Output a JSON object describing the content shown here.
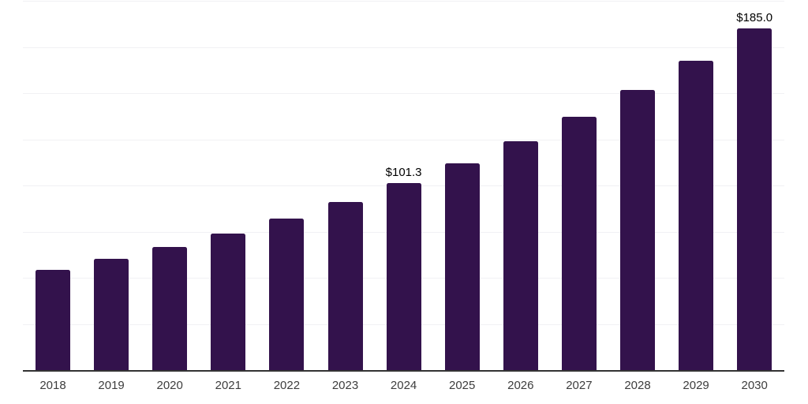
{
  "chart_data": {
    "type": "bar",
    "categories": [
      "2018",
      "2019",
      "2020",
      "2021",
      "2022",
      "2023",
      "2024",
      "2025",
      "2026",
      "2027",
      "2028",
      "2029",
      "2030"
    ],
    "values": [
      54.5,
      60.3,
      66.7,
      73.8,
      82.1,
      91.0,
      101.3,
      112.0,
      123.9,
      137.4,
      151.6,
      167.5,
      185.0
    ],
    "value_labels": [
      {
        "category": "2024",
        "label": "$101.3"
      },
      {
        "category": "2030",
        "label": "$185.0"
      }
    ],
    "xlabel": "",
    "ylabel": "",
    "ylim": [
      0,
      200
    ],
    "grid_step": 25,
    "grid": "on",
    "legend": "none",
    "colors": {
      "bar": "#33124c",
      "axis": "#333333",
      "gridline": "#f1f1f4",
      "tick_label": "#3d3d3d",
      "value_label": "#000000",
      "background": "#ffffff"
    }
  }
}
